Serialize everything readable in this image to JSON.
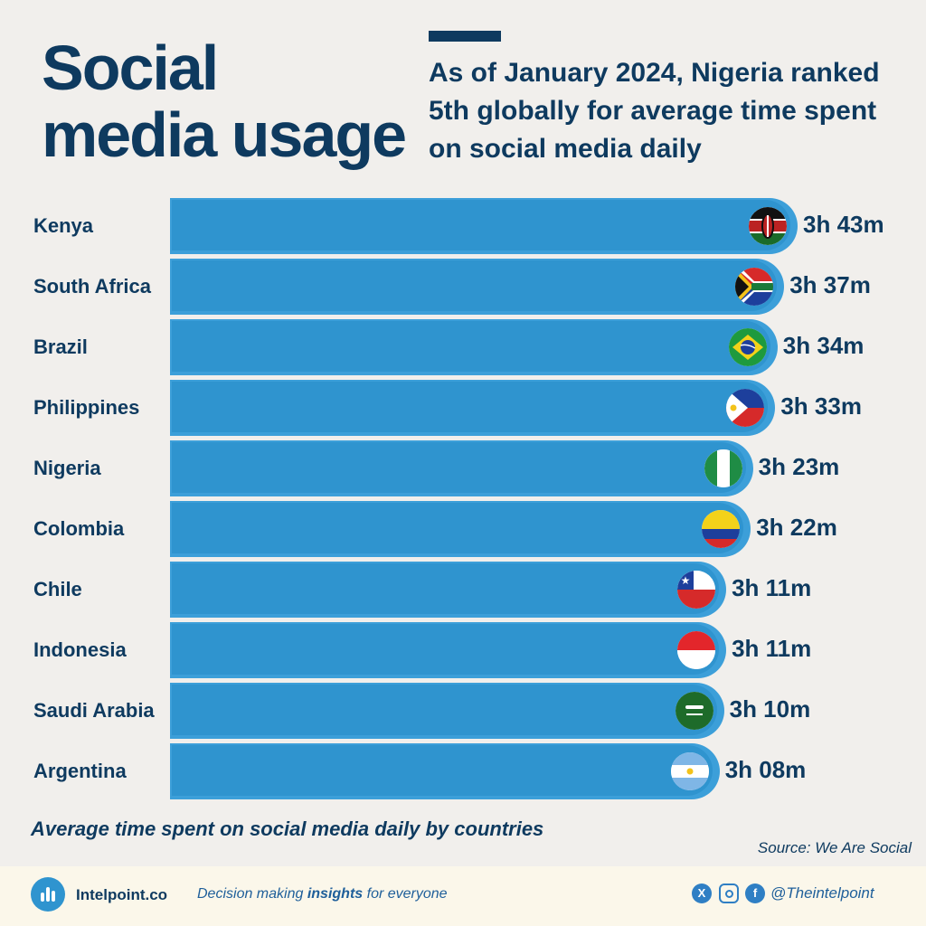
{
  "header": {
    "title_line1": "Social",
    "title_line2": "media usage",
    "subtitle": "As of January 2024, Nigeria ranked 5th globally for average time spent on social media daily"
  },
  "chart_data": {
    "type": "bar",
    "orientation": "horizontal",
    "categories": [
      "Kenya",
      "South Africa",
      "Brazil",
      "Philippines",
      "Nigeria",
      "Colombia",
      "Chile",
      "Indonesia",
      "Saudi Arabia",
      "Argentina"
    ],
    "values": [
      223,
      217,
      214,
      213,
      203,
      202,
      191,
      191,
      190,
      188
    ],
    "value_labels": [
      "3h 43m",
      "3h 37m",
      "3h 34m",
      "3h 33m",
      "3h 23m",
      "3h 22m",
      "3h 11m",
      "3h 11m",
      "3h 10m",
      "3h 08m"
    ],
    "value_unit": "minutes",
    "flags": [
      "kenya-flag",
      "south-africa-flag",
      "brazil-flag",
      "philippines-flag",
      "nigeria-flag",
      "colombia-flag",
      "chile-flag",
      "indonesia-flag",
      "saudi-arabia-flag",
      "argentina-flag"
    ],
    "bar_color": "#2f94cf",
    "label_color": "#0e3a5f",
    "grid": false,
    "legend": "none"
  },
  "caption": "Average time spent on social media daily by countries",
  "source": "Source: We Are Social",
  "footer": {
    "brand": "Intelpoint.co",
    "tagline_pre": "Decision making ",
    "tagline_bold": "insights",
    "tagline_post": " for everyone",
    "handle": "@Theintelpoint",
    "icons": [
      "x-icon",
      "instagram-icon",
      "facebook-icon"
    ]
  }
}
